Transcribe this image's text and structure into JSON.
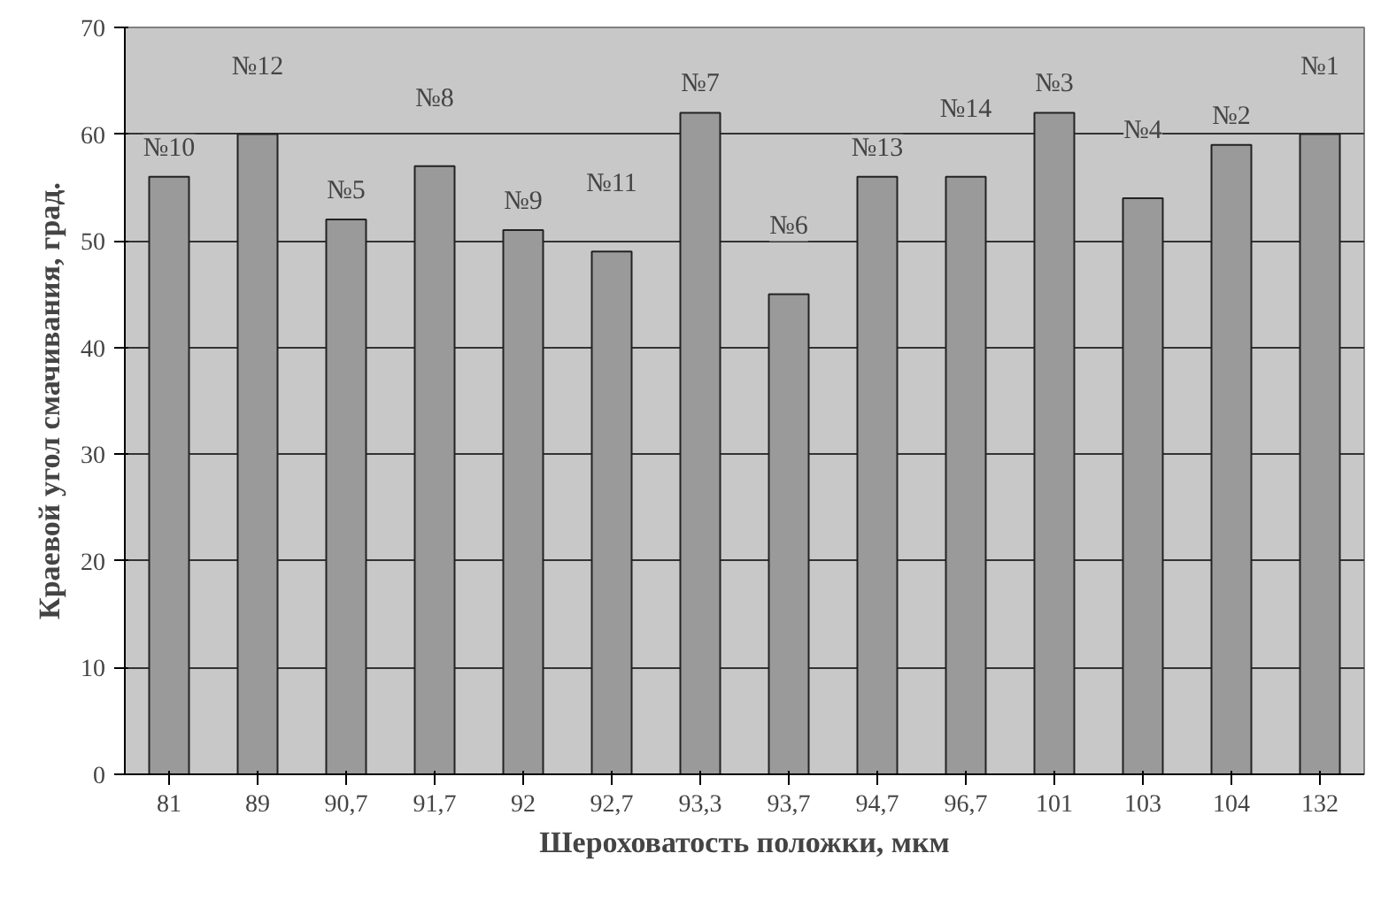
{
  "chart_data": {
    "type": "bar",
    "xlabel": "Шероховатость положки, мкм",
    "ylabel": "Краевой угол смачивания, град.",
    "categories": [
      "81",
      "89",
      "90,7",
      "91,7",
      "92",
      "92,7",
      "93,3",
      "93,7",
      "94,7",
      "96,7",
      "101",
      "103",
      "104",
      "132"
    ],
    "values": [
      56,
      60,
      52,
      57,
      51,
      49,
      62,
      45,
      56,
      56,
      62,
      54,
      59,
      60
    ],
    "annotations": [
      "№10",
      "№12",
      "№5",
      "№8",
      "№9",
      "№11",
      "№7",
      "№6",
      "№13",
      "№14",
      "№3",
      "№4",
      "№2",
      "№1"
    ],
    "color": "#9a9a9a",
    "ylim": [
      0,
      70
    ],
    "yticks": [
      0,
      10,
      20,
      30,
      40,
      50,
      60,
      70
    ],
    "grid": "y"
  }
}
